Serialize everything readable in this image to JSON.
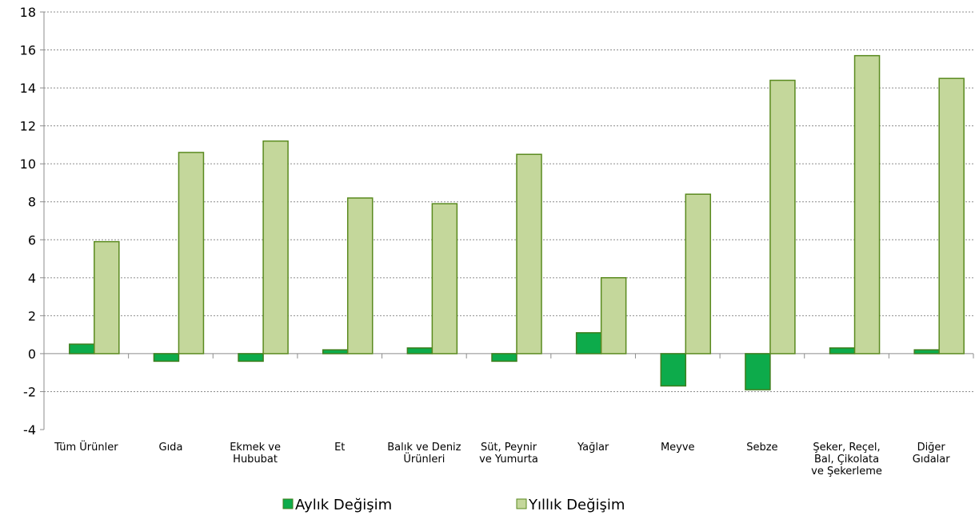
{
  "chart_data": {
    "type": "bar",
    "categories": [
      [
        "Tüm Ürünler"
      ],
      [
        "Gıda"
      ],
      [
        "Ekmek ve",
        "Hububat"
      ],
      [
        "Et"
      ],
      [
        "Balık ve Deniz",
        "Ürünleri"
      ],
      [
        "Süt, Peynir",
        "ve Yumurta"
      ],
      [
        "Yağlar"
      ],
      [
        "Meyve"
      ],
      [
        "Sebze"
      ],
      [
        "Şeker, Reçel,",
        "Bal, Çikolata",
        "ve Şekerleme"
      ],
      [
        "Diğer",
        "Gıdalar"
      ]
    ],
    "series": [
      {
        "name": "Aylık Değişim",
        "color": "#0dab4b",
        "stroke": "#3f7f1e",
        "values": [
          0.5,
          -0.4,
          -0.4,
          0.2,
          0.3,
          -0.4,
          1.1,
          -1.7,
          -1.9,
          0.3,
          0.2
        ]
      },
      {
        "name": "Yıllık Değişim",
        "color": "#c4d79b",
        "stroke": "#5a8a1f",
        "values": [
          5.9,
          10.6,
          11.2,
          8.2,
          7.9,
          10.5,
          4.0,
          8.4,
          14.4,
          15.7,
          14.5
        ]
      }
    ],
    "ylim": [
      -4,
      18
    ],
    "yticks": [
      "-4",
      "-2",
      "0",
      "2",
      "4",
      "6",
      "8",
      "10",
      "12",
      "14",
      "16",
      "18"
    ],
    "grid": true,
    "legend_position": "bottom"
  }
}
